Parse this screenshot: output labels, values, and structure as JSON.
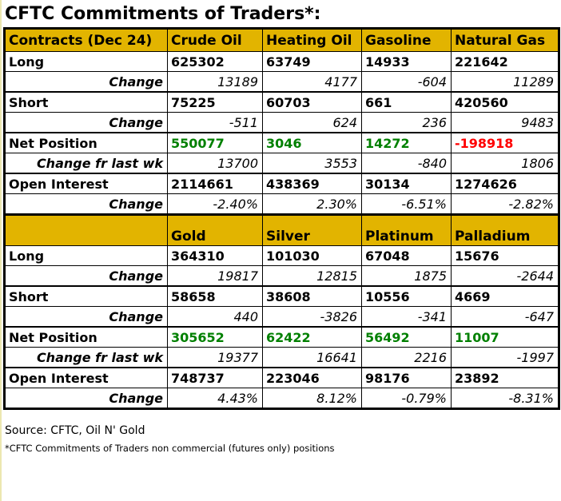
{
  "title": "CFTC Commitments of Traders*:",
  "colors": {
    "header_bg": "#e2b400",
    "label_bg": "#e9e5a5",
    "green": "#008000",
    "red": "#ff0000",
    "border": "#000000"
  },
  "chart_data": [
    {
      "type": "table",
      "columns": [
        "Contracts (Dec 24)",
        "Crude Oil",
        "Heating Oil",
        "Gasoline",
        "Natural Gas"
      ],
      "rows": [
        {
          "label": "Long",
          "style": "plain",
          "values": [
            "625302",
            "63749",
            "14933",
            "221642"
          ]
        },
        {
          "label": "Change",
          "style": "change",
          "values": [
            "13189",
            "4177",
            "-604",
            "11289"
          ]
        },
        {
          "label": "Short",
          "style": "plain",
          "values": [
            "75225",
            "60703",
            "661",
            "420560"
          ]
        },
        {
          "label": "Change",
          "style": "change",
          "values": [
            "-511",
            "624",
            "236",
            "9483"
          ]
        },
        {
          "label": "Net Position",
          "style": "net",
          "values": [
            "550077",
            "3046",
            "14272",
            "-198918"
          ],
          "value_colors": [
            "green",
            "green",
            "green",
            "red"
          ]
        },
        {
          "label": "Change fr last wk",
          "style": "change",
          "values": [
            "13700",
            "3553",
            "-840",
            "1806"
          ]
        },
        {
          "label": "Open Interest",
          "style": "plain",
          "values": [
            "2114661",
            "438369",
            "30134",
            "1274626"
          ]
        },
        {
          "label": "Change",
          "style": "change",
          "values": [
            "-2.40%",
            "2.30%",
            "-6.51%",
            "-2.82%"
          ]
        }
      ]
    },
    {
      "type": "table",
      "columns": [
        "",
        "Gold",
        "Silver",
        "Platinum",
        "Palladium"
      ],
      "rows": [
        {
          "label": "Long",
          "style": "plain",
          "values": [
            "364310",
            "101030",
            "67048",
            "15676"
          ]
        },
        {
          "label": "Change",
          "style": "change",
          "values": [
            "19817",
            "12815",
            "1875",
            "-2644"
          ]
        },
        {
          "label": "Short",
          "style": "plain",
          "values": [
            "58658",
            "38608",
            "10556",
            "4669"
          ]
        },
        {
          "label": "Change",
          "style": "change",
          "values": [
            "440",
            "-3826",
            "-341",
            "-647"
          ]
        },
        {
          "label": "Net Position",
          "style": "net",
          "values": [
            "305652",
            "62422",
            "56492",
            "11007"
          ],
          "value_colors": [
            "green",
            "green",
            "green",
            "green"
          ]
        },
        {
          "label": "Change fr last wk",
          "style": "change",
          "values": [
            "19377",
            "16641",
            "2216",
            "-1997"
          ]
        },
        {
          "label": "Open Interest",
          "style": "plain",
          "values": [
            "748737",
            "223046",
            "98176",
            "23892"
          ]
        },
        {
          "label": "Change",
          "style": "change",
          "values": [
            "4.43%",
            "8.12%",
            "-0.79%",
            "-8.31%"
          ]
        }
      ]
    }
  ],
  "footer": {
    "source": "Source: CFTC, Oil N' Gold",
    "note": "*CFTC Commitments of Traders non commercial (futures only) positions"
  }
}
